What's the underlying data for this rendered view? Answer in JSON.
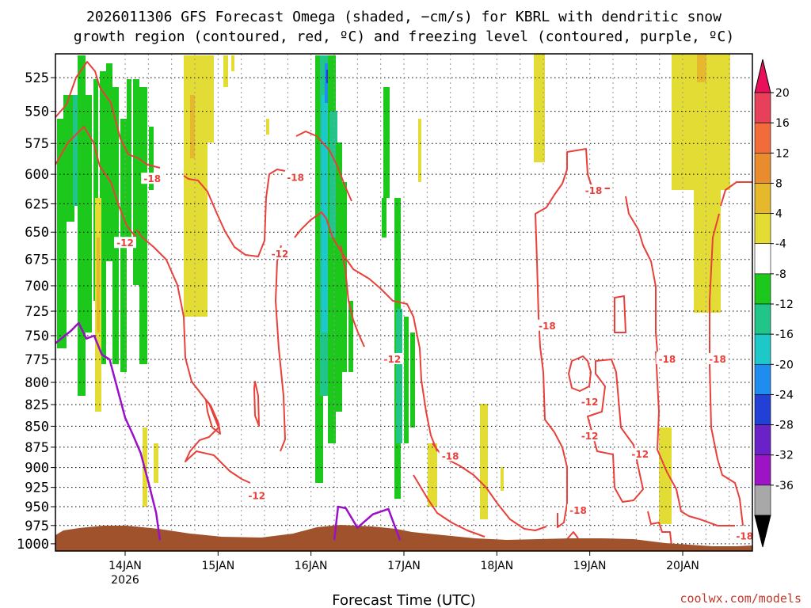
{
  "title_line1": "2026011306 GFS Forecast Omega (shaded, −cm/s) for KBRL with dendritic snow",
  "title_line2": "growth region (contoured, red, ºC) and freezing level (contoured, purple, ºC)",
  "xlabel": "Forecast Time (UTC)",
  "credit": "coolwx.com/models",
  "chart_data": {
    "type": "heatmap",
    "title": "2026011306 GFS Forecast Omega (shaded, −cm/s) for KBRL with dendritic snow growth region (contoured, red, ºC) and freezing level (contoured, purple, ºC)",
    "xlabel": "Forecast Time (UTC)",
    "ylabel": "",
    "x_range": [
      "2026-01-13T06",
      "2026-01-20T18"
    ],
    "y_levels_hpa": [
      525,
      550,
      575,
      600,
      625,
      650,
      675,
      700,
      725,
      750,
      775,
      800,
      825,
      850,
      875,
      900,
      925,
      950,
      975,
      1000
    ],
    "y_range_hpa": [
      1010,
      508
    ],
    "y_scale": "log-pressure",
    "x_ticks": [
      {
        "label": "14JAN",
        "sub": "2026",
        "time": "2026-01-14T00"
      },
      {
        "label": "15JAN",
        "sub": "",
        "time": "2026-01-15T00"
      },
      {
        "label": "16JAN",
        "sub": "",
        "time": "2026-01-16T00"
      },
      {
        "label": "17JAN",
        "sub": "",
        "time": "2026-01-17T00"
      },
      {
        "label": "18JAN",
        "sub": "",
        "time": "2026-01-18T00"
      },
      {
        "label": "19JAN",
        "sub": "",
        "time": "2026-01-19T00"
      },
      {
        "label": "20JAN",
        "sub": "",
        "time": "2026-01-20T00"
      }
    ],
    "grid": true,
    "colorbar": {
      "labels": [
        "20",
        "16",
        "12",
        "8",
        "4",
        "-4",
        "-8",
        "-12",
        "-16",
        "-20",
        "-24",
        "-28",
        "-32",
        "-36"
      ],
      "colors": [
        "#e8405a",
        "#f26b3a",
        "#e88c2e",
        "#e6b82c",
        "#e3dc34",
        "#ffffff",
        "#1dc81d",
        "#21c58a",
        "#1ec8c8",
        "#1f8df0",
        "#2340d6",
        "#6a22c8",
        "#9c14c4",
        "#a8a8a8",
        "#000000"
      ],
      "top_arrow_color": "#e8105a",
      "bottom_arrow_color": "#000000"
    },
    "contour_levels": {
      "dendritic": [
        "-12",
        "-18"
      ],
      "freezing": [
        "0"
      ]
    },
    "contour_labels": [
      {
        "text": "-18",
        "time": "2026-01-14T07",
        "p": 604
      },
      {
        "text": "-12",
        "time": "2026-01-14T00",
        "p": 660
      },
      {
        "text": "-18",
        "time": "2026-01-15T20",
        "p": 603
      },
      {
        "text": "-12",
        "time": "2026-01-15T16",
        "p": 670
      },
      {
        "text": "-12",
        "time": "2026-01-15T10",
        "p": 936
      },
      {
        "text": "-12",
        "time": "2026-01-16T21",
        "p": 775
      },
      {
        "text": "-18",
        "time": "2026-01-17T12",
        "p": 886
      },
      {
        "text": "-18",
        "time": "2026-01-18T13",
        "p": 740
      },
      {
        "text": "-18",
        "time": "2026-01-19T01",
        "p": 614
      },
      {
        "text": "-18",
        "time": "2026-01-19T20",
        "p": 775
      },
      {
        "text": "-12",
        "time": "2026-01-19T00",
        "p": 822
      },
      {
        "text": "-12",
        "time": "2026-01-19T00",
        "p": 862
      },
      {
        "text": "-12",
        "time": "2026-01-19T13",
        "p": 884
      },
      {
        "text": "-18",
        "time": "2026-01-18T21",
        "p": 955
      },
      {
        "text": "-18",
        "time": "2026-01-20T09",
        "p": 775
      },
      {
        "text": "-18",
        "time": "2026-01-20T16",
        "p": 990
      }
    ],
    "series": [
      {
        "name": "",
        "kind": "freezing-level",
        "color": "#9910c8",
        "points": [
          [
            "2026-01-13T06",
            758
          ],
          [
            "2026-01-13T10",
            745
          ],
          [
            "2026-01-13T12",
            737
          ],
          [
            "2026-01-13T14",
            753
          ],
          [
            "2026-01-13T16",
            750
          ],
          [
            "2026-01-13T18",
            770
          ],
          [
            "2026-01-13T20",
            775
          ],
          [
            "2026-01-14T00",
            840
          ],
          [
            "2026-01-14T02",
            860
          ],
          [
            "2026-01-14T04",
            882
          ],
          [
            "2026-01-14T06",
            918
          ],
          [
            "2026-01-14T08",
            958
          ],
          [
            "2026-01-14T09",
            995
          ]
        ]
      },
      {
        "name": "",
        "kind": "freezing-level",
        "color": "#9910c8",
        "points": [
          [
            "2026-01-16T06",
            995
          ],
          [
            "2026-01-16T07",
            950
          ],
          [
            "2026-01-16T09",
            952
          ],
          [
            "2026-01-16T12",
            978
          ],
          [
            "2026-01-16T16",
            960
          ],
          [
            "2026-01-16T20",
            953
          ],
          [
            "2026-01-16T23",
            995
          ]
        ]
      }
    ]
  }
}
